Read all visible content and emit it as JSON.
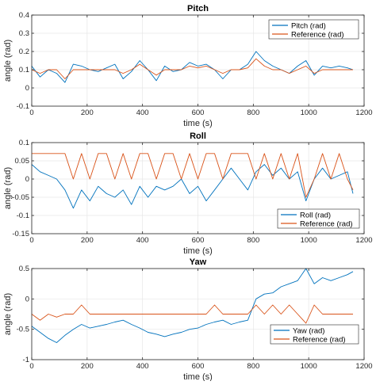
{
  "chart_data": [
    {
      "type": "line",
      "title": "Pitch",
      "xlabel": "time (s)",
      "ylabel": "angle (rad)",
      "xlim": [
        0,
        1200
      ],
      "ylim": [
        -0.1,
        0.4
      ],
      "xticks": [
        0,
        200,
        400,
        600,
        800,
        1000,
        1200
      ],
      "yticks": [
        -0.1,
        0,
        0.1,
        0.2,
        0.3,
        0.4
      ],
      "ytick_labels": [
        "-0.1",
        "0",
        "0.1",
        "0.2",
        "0.3",
        "0.4"
      ],
      "grid": true,
      "legend_position": "top-right",
      "series": [
        {
          "name": "Pitch (rad)",
          "color": "#0072BD",
          "x": [
            0,
            30,
            60,
            90,
            120,
            150,
            180,
            210,
            240,
            270,
            300,
            330,
            360,
            390,
            420,
            450,
            480,
            510,
            540,
            570,
            600,
            630,
            660,
            690,
            720,
            750,
            780,
            810,
            840,
            870,
            900,
            930,
            960,
            990,
            1020,
            1050,
            1080,
            1110,
            1140,
            1160
          ],
          "y": [
            0.12,
            0.06,
            0.1,
            0.08,
            0.03,
            0.13,
            0.12,
            0.1,
            0.09,
            0.11,
            0.13,
            0.05,
            0.09,
            0.15,
            0.1,
            0.04,
            0.12,
            0.09,
            0.1,
            0.14,
            0.12,
            0.13,
            0.1,
            0.05,
            0.1,
            0.1,
            0.13,
            0.2,
            0.15,
            0.12,
            0.1,
            0.08,
            0.12,
            0.15,
            0.07,
            0.12,
            0.11,
            0.12,
            0.11,
            0.1
          ]
        },
        {
          "name": "Reference (rad)",
          "color": "#D95319",
          "x": [
            0,
            30,
            60,
            90,
            120,
            150,
            180,
            210,
            240,
            270,
            300,
            330,
            360,
            390,
            420,
            450,
            480,
            510,
            540,
            570,
            600,
            630,
            660,
            690,
            720,
            750,
            780,
            810,
            840,
            870,
            900,
            930,
            960,
            990,
            1020,
            1050,
            1080,
            1110,
            1140,
            1160
          ],
          "y": [
            0.1,
            0.08,
            0.1,
            0.1,
            0.05,
            0.1,
            0.1,
            0.1,
            0.1,
            0.1,
            0.1,
            0.08,
            0.1,
            0.13,
            0.1,
            0.07,
            0.1,
            0.1,
            0.1,
            0.12,
            0.11,
            0.12,
            0.1,
            0.08,
            0.1,
            0.1,
            0.11,
            0.16,
            0.12,
            0.1,
            0.1,
            0.08,
            0.1,
            0.12,
            0.08,
            0.1,
            0.1,
            0.1,
            0.1,
            0.1
          ]
        }
      ]
    },
    {
      "type": "line",
      "title": "Roll",
      "xlabel": "time (s)",
      "ylabel": "angle (rad)",
      "xlim": [
        0,
        1200
      ],
      "ylim": [
        -0.15,
        0.1
      ],
      "xticks": [
        0,
        200,
        400,
        600,
        800,
        1000,
        1200
      ],
      "yticks": [
        -0.15,
        -0.1,
        -0.05,
        0,
        0.05,
        0.1
      ],
      "ytick_labels": [
        "-0.15",
        "-0.1",
        "-0.05",
        "0",
        "0.05",
        "0.1"
      ],
      "grid": true,
      "legend_position": "bottom-right",
      "series": [
        {
          "name": "Roll (rad)",
          "color": "#0072BD",
          "x": [
            0,
            30,
            60,
            90,
            120,
            150,
            180,
            210,
            240,
            270,
            300,
            330,
            360,
            390,
            420,
            450,
            480,
            510,
            540,
            570,
            600,
            630,
            660,
            690,
            720,
            750,
            780,
            810,
            840,
            870,
            900,
            930,
            960,
            990,
            1020,
            1050,
            1080,
            1110,
            1140,
            1160
          ],
          "y": [
            0.04,
            0.02,
            0.01,
            0.0,
            -0.03,
            -0.08,
            -0.03,
            -0.06,
            -0.02,
            -0.04,
            -0.05,
            -0.03,
            -0.07,
            -0.02,
            -0.05,
            -0.02,
            -0.03,
            -0.02,
            0.0,
            -0.04,
            -0.02,
            -0.06,
            -0.03,
            0.0,
            0.03,
            0.0,
            -0.03,
            0.02,
            0.04,
            0.01,
            0.03,
            0.0,
            0.02,
            -0.06,
            0.0,
            0.03,
            0.0,
            0.01,
            0.02,
            -0.04
          ]
        },
        {
          "name": "Reference (rad)",
          "color": "#D95319",
          "x": [
            0,
            30,
            60,
            90,
            120,
            150,
            180,
            210,
            240,
            270,
            300,
            330,
            360,
            390,
            420,
            450,
            480,
            510,
            540,
            570,
            600,
            630,
            660,
            690,
            720,
            750,
            780,
            810,
            840,
            870,
            900,
            930,
            960,
            990,
            1020,
            1050,
            1080,
            1110,
            1140,
            1160
          ],
          "y": [
            0.07,
            0.07,
            0.07,
            0.07,
            0.07,
            0.0,
            0.07,
            0.0,
            0.07,
            0.07,
            0.0,
            0.07,
            0.0,
            0.07,
            0.07,
            0.0,
            0.07,
            0.07,
            0.0,
            0.07,
            0.0,
            0.07,
            0.07,
            0.0,
            0.07,
            0.07,
            0.07,
            0.0,
            0.07,
            0.0,
            0.07,
            0.0,
            0.07,
            -0.05,
            0.0,
            0.07,
            0.0,
            0.07,
            0.0,
            -0.03
          ]
        }
      ]
    },
    {
      "type": "line",
      "title": "Yaw",
      "xlabel": "time (s)",
      "ylabel": "angle (rad)",
      "xlim": [
        0,
        1200
      ],
      "ylim": [
        -1,
        0.5
      ],
      "xticks": [
        0,
        200,
        400,
        600,
        800,
        1000,
        1200
      ],
      "yticks": [
        -1,
        -0.5,
        0,
        0.5
      ],
      "ytick_labels": [
        "-1",
        "-0.5",
        "0",
        "0.5"
      ],
      "grid": true,
      "legend_position": "bottom-right",
      "series": [
        {
          "name": "Yaw (rad)",
          "color": "#0072BD",
          "x": [
            0,
            30,
            60,
            90,
            120,
            150,
            180,
            210,
            240,
            270,
            300,
            330,
            360,
            390,
            420,
            450,
            480,
            510,
            540,
            570,
            600,
            630,
            660,
            690,
            720,
            750,
            780,
            810,
            840,
            870,
            900,
            930,
            960,
            990,
            1020,
            1050,
            1080,
            1110,
            1140,
            1160
          ],
          "y": [
            -0.45,
            -0.55,
            -0.65,
            -0.72,
            -0.6,
            -0.5,
            -0.42,
            -0.48,
            -0.45,
            -0.42,
            -0.38,
            -0.35,
            -0.42,
            -0.48,
            -0.55,
            -0.58,
            -0.62,
            -0.58,
            -0.55,
            -0.5,
            -0.48,
            -0.42,
            -0.38,
            -0.35,
            -0.42,
            -0.38,
            -0.35,
            0.0,
            0.08,
            0.1,
            0.2,
            0.25,
            0.3,
            0.5,
            0.25,
            0.35,
            0.3,
            0.35,
            0.4,
            0.45
          ]
        },
        {
          "name": "Reference (rad)",
          "color": "#D95319",
          "x": [
            0,
            30,
            60,
            90,
            120,
            150,
            180,
            210,
            240,
            270,
            300,
            330,
            360,
            390,
            420,
            450,
            480,
            510,
            540,
            570,
            600,
            630,
            660,
            690,
            720,
            750,
            780,
            810,
            840,
            870,
            900,
            930,
            960,
            990,
            1020,
            1050,
            1080,
            1110,
            1140,
            1160
          ],
          "y": [
            -0.25,
            -0.35,
            -0.25,
            -0.3,
            -0.25,
            -0.25,
            -0.1,
            -0.25,
            -0.25,
            -0.25,
            -0.25,
            -0.25,
            -0.25,
            -0.25,
            -0.25,
            -0.25,
            -0.25,
            -0.25,
            -0.25,
            -0.25,
            -0.25,
            -0.25,
            -0.1,
            -0.25,
            -0.25,
            -0.25,
            -0.25,
            -0.1,
            -0.25,
            -0.1,
            -0.25,
            -0.1,
            -0.25,
            -0.4,
            -0.1,
            -0.25,
            -0.25,
            -0.25,
            -0.25,
            -0.25
          ]
        }
      ]
    }
  ]
}
